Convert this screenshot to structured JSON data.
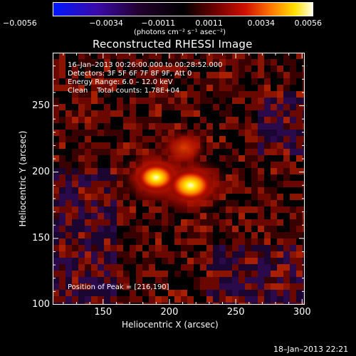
{
  "chart_data": {
    "type": "heatmap",
    "title": "Reconstructed RHESSI Image",
    "xlabel": "Heliocentric X (arcsec)",
    "ylabel": "Heliocentric Y (arcsec)",
    "xlim": [
      112,
      302
    ],
    "ylim": [
      100,
      290
    ],
    "x_ticks": [
      150,
      200,
      250,
      300
    ],
    "y_ticks": [
      100,
      150,
      200,
      250
    ],
    "colorbar": {
      "range": [
        -0.0056,
        0.0056
      ],
      "ticks": [
        "−0.0056",
        "−0.0034",
        "−0.0011",
        "0.0011",
        "0.0034",
        "0.0056"
      ],
      "units": "(photons cm⁻² s⁻¹ asec⁻²)",
      "colors": [
        "#0018ff",
        "#4a0a8a",
        "#20002a",
        "#000000",
        "#700000",
        "#d01000",
        "#ff7a00",
        "#ffe000",
        "#ffffe0"
      ]
    },
    "annotations": [
      "16–Jan–2013 00:26:00.000 to 00:28:52.000",
      "Detectors: 3F 5F 6F 7F 8F 9F, Att 0",
      "Energy Range: 6.0 – 12.0 keV",
      "Clean    Total counts: 1.78E+04"
    ],
    "peak_label": "Position of Peak = [216,190]",
    "sources": [
      {
        "x": 216,
        "y": 190,
        "peak": 0.0056
      },
      {
        "x": 190,
        "y": 196,
        "peak": 0.005
      },
      {
        "x": 211,
        "y": 218,
        "peak": 0.0014
      }
    ]
  },
  "footer": {
    "timestamp": "18–Jan–2013 22:21"
  }
}
